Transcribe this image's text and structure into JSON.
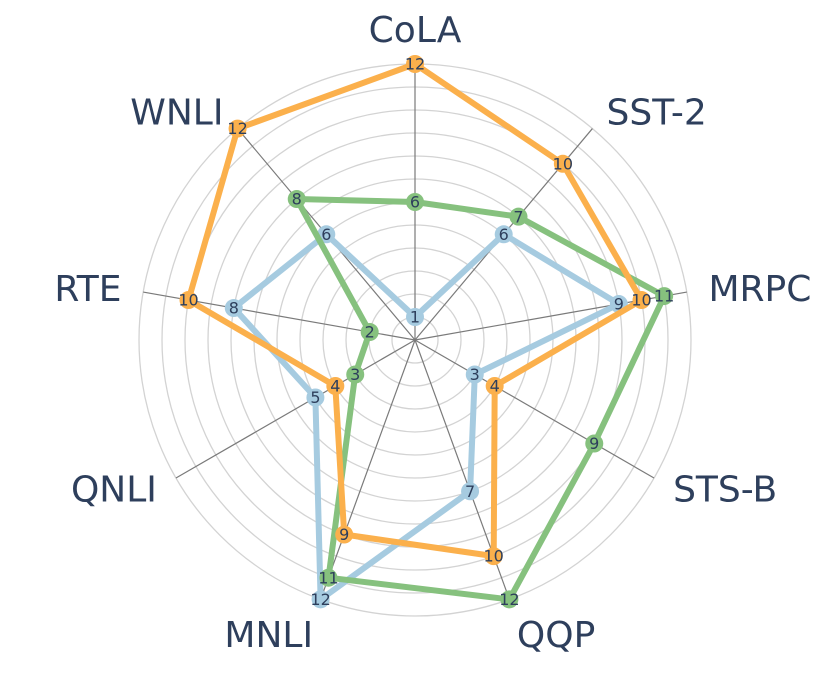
{
  "chart_data": {
    "type": "radar",
    "axes": [
      "CoLA",
      "SST-2",
      "MRPC",
      "STS-B",
      "QQP",
      "MNLI",
      "QNLI",
      "RTE",
      "WNLI"
    ],
    "rlim": [
      0,
      12
    ],
    "grid": true,
    "series": [
      {
        "color": "#a6cbe0",
        "values": [
          1,
          6,
          9,
          3,
          7,
          12,
          5,
          8,
          6
        ]
      },
      {
        "color": "#86c17e",
        "values": [
          6,
          7,
          11,
          9,
          12,
          11,
          3,
          2,
          8
        ]
      },
      {
        "color": "#fbb04c",
        "values": [
          12,
          10,
          10,
          4,
          10,
          9,
          4,
          10,
          12
        ]
      }
    ]
  }
}
